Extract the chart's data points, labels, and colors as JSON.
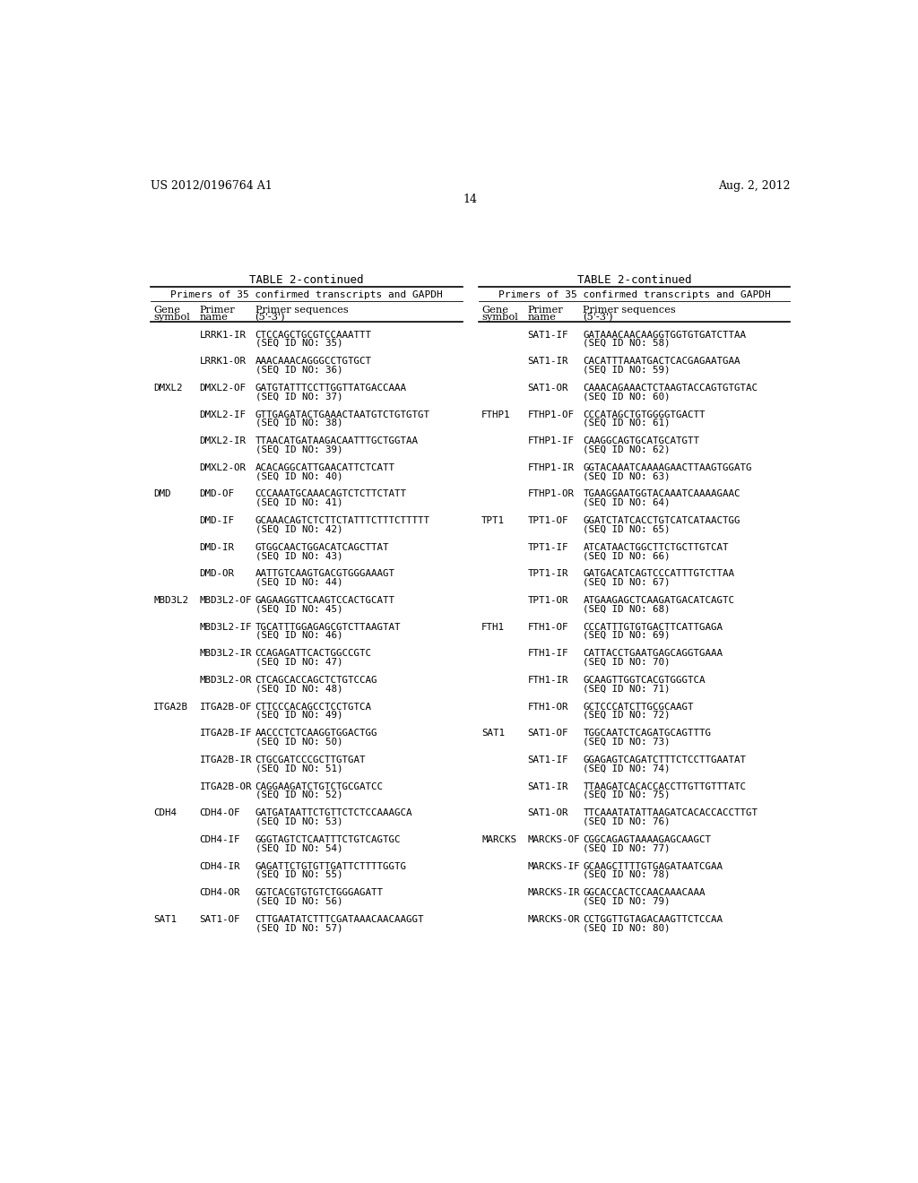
{
  "header_left": "US 2012/0196764 A1",
  "header_right": "Aug. 2, 2012",
  "page_number": "14",
  "table_title": "TABLE 2-continued",
  "table_subtitle": "Primers of 35 confirmed transcripts and GAPDH",
  "left_rows": [
    [
      "",
      "LRRK1-IR",
      "CTCCAGCTGCGTCCAAATTT",
      "(SEQ ID NO: 35)"
    ],
    [
      "",
      "LRRK1-OR",
      "AAACAAACAGGGCCTGTGCT",
      "(SEQ ID NO: 36)"
    ],
    [
      "DMXL2",
      "DMXL2-OF",
      "GATGTATTTCCTTGGTTATGACCAAA",
      "(SEQ ID NO: 37)"
    ],
    [
      "",
      "DMXL2-IF",
      "GTTGAGATACTGAAACTAATGTCTGTGTGT",
      "(SEQ ID NO: 38)"
    ],
    [
      "",
      "DMXL2-IR",
      "TTAACATGATAAGACAATTTGCTGGTAA",
      "(SEQ ID NO: 39)"
    ],
    [
      "",
      "DMXL2-OR",
      "ACACAGGCATTGAACATTCTCATT",
      "(SEQ ID NO: 40)"
    ],
    [
      "DMD",
      "DMD-OF",
      "CCCAAATGCAAACAGTCTCTTCTATT",
      "(SEQ ID NO: 41)"
    ],
    [
      "",
      "DMD-IF",
      "GCAAACAGTCTCTTCTATTTCTTTCTTTTT",
      "(SEQ ID NO: 42)"
    ],
    [
      "",
      "DMD-IR",
      "GTGGCAACTGGACATCAGCTTAT",
      "(SEQ ID NO: 43)"
    ],
    [
      "",
      "DMD-OR",
      "AATTGTCAAGTGACGTGGGAAAGT",
      "(SEQ ID NO: 44)"
    ],
    [
      "MBD3L2",
      "MBD3L2-OF",
      "GAGAAGGTTCAAGTCCACTGCATT",
      "(SEQ ID NO: 45)"
    ],
    [
      "",
      "MBD3L2-IF",
      "TGCATTTGGAGAGCGTCTTAAGTAT",
      "(SEQ ID NO: 46)"
    ],
    [
      "",
      "MBD3L2-IR",
      "CCAGAGATTCACTGGCCGTC",
      "(SEQ ID NO: 47)"
    ],
    [
      "",
      "MBD3L2-OR",
      "CTCAGCACCAGCTCTGTCCAG",
      "(SEQ ID NO: 48)"
    ],
    [
      "ITGA2B",
      "ITGA2B-OF",
      "CTTCCCACAGCCTCCTGTCA",
      "(SEQ ID NO: 49)"
    ],
    [
      "",
      "ITGA2B-IF",
      "AACCCTCTCAAGGTGGACTGG",
      "(SEQ ID NO: 50)"
    ],
    [
      "",
      "ITGA2B-IR",
      "CTGCGATCCCGCTTGTGAT",
      "(SEQ ID NO: 51)"
    ],
    [
      "",
      "ITGA2B-OR",
      "CAGGAAGATCTGTCTGCGATCC",
      "(SEQ ID NO: 52)"
    ],
    [
      "CDH4",
      "CDH4-OF",
      "GATGATAATTCTGTTCTCTCCAAAGCA",
      "(SEQ ID NO: 53)"
    ],
    [
      "",
      "CDH4-IF",
      "GGGTAGTCTCAATTTCTGTCAGTGC",
      "(SEQ ID NO: 54)"
    ],
    [
      "",
      "CDH4-IR",
      "GAGATTCTGTGTTGATTCTTTTGGTG",
      "(SEQ ID NO: 55)"
    ],
    [
      "",
      "CDH4-OR",
      "GGTCACGTGTGTCTGGGAGATT",
      "(SEQ ID NO: 56)"
    ],
    [
      "SAT1",
      "SAT1-OF",
      "CTTGAATATCTTTCGATAAACAACAAGGT",
      "(SEQ ID NO: 57)"
    ]
  ],
  "right_rows": [
    [
      "",
      "SAT1-IF",
      "GATAAACAACAAGGTGGTGTGATCTTAA",
      "(SEQ ID NO: 58)"
    ],
    [
      "",
      "SAT1-IR",
      "CACATTTAAATGACTCACGAGAATGAA",
      "(SEQ ID NO: 59)"
    ],
    [
      "",
      "SAT1-OR",
      "CAAACAGAAACTCTAAGTACCAGTGTGTAC",
      "(SEQ ID NO: 60)"
    ],
    [
      "FTHP1",
      "FTHP1-OF",
      "CCCATAGCTGTGGGGTGACTT",
      "(SEQ ID NO: 61)"
    ],
    [
      "",
      "FTHP1-IF",
      "CAAGGCAGTGCATGCATGTT",
      "(SEQ ID NO: 62)"
    ],
    [
      "",
      "FTHP1-IR",
      "GGTACAAATCAAAAGAACTTAAGTGGATG",
      "(SEQ ID NO: 63)"
    ],
    [
      "",
      "FTHP1-OR",
      "TGAAGGAATGGTACAAATCAAAAGAAC",
      "(SEQ ID NO: 64)"
    ],
    [
      "TPT1",
      "TPT1-OF",
      "GGATCTATCACCTGTCATCATAACTGG",
      "(SEQ ID NO: 65)"
    ],
    [
      "",
      "TPT1-IF",
      "ATCATAACTGGCTTCTGCTTGTCAT",
      "(SEQ ID NO: 66)"
    ],
    [
      "",
      "TPT1-IR",
      "GATGACATCAGTCCCATTTGTCTTAA",
      "(SEQ ID NO: 67)"
    ],
    [
      "",
      "TPT1-OR",
      "ATGAAGAGCTCAAGATGACATCAGTC",
      "(SEQ ID NO: 68)"
    ],
    [
      "FTH1",
      "FTH1-OF",
      "CCCATTTGTGTGACTTCATTGAGA",
      "(SEQ ID NO: 69)"
    ],
    [
      "",
      "FTH1-IF",
      "CATTACCTGAATGAGCAGGTGAAA",
      "(SEQ ID NO: 70)"
    ],
    [
      "",
      "FTH1-IR",
      "GCAAGTTGGTCACGTGGGTCA",
      "(SEQ ID NO: 71)"
    ],
    [
      "",
      "FTH1-OR",
      "GCTCCCATCTTGCGCAAGT",
      "(SEQ ID NO: 72)"
    ],
    [
      "SAT1",
      "SAT1-OF",
      "TGGCAATCTCAGATGCAGTTTG",
      "(SEQ ID NO: 73)"
    ],
    [
      "",
      "SAT1-IF",
      "GGAGAGTCAGATCTTTCTCCTTGAATAT",
      "(SEQ ID NO: 74)"
    ],
    [
      "",
      "SAT1-IR",
      "TTAAGATCACACCACCTTGTTGTTTATC",
      "(SEQ ID NO: 75)"
    ],
    [
      "",
      "SAT1-OR",
      "TTCAAATATATTAAGATCACACCACCTTGT",
      "(SEQ ID NO: 76)"
    ],
    [
      "MARCKS",
      "MARCKS-OF",
      "CGGCAGAGTAAAAGAGCAAGCT",
      "(SEQ ID NO: 77)"
    ],
    [
      "",
      "MARCKS-IF",
      "GCAAGCTTTTGTGAGATAATCGAA",
      "(SEQ ID NO: 78)"
    ],
    [
      "",
      "MARCKS-IR",
      "GGCACCACTCCAACAAACAAA",
      "(SEQ ID NO: 79)"
    ],
    [
      "",
      "MARCKS-OR",
      "CCTGGTTGTAGACAAGTTCTCCAA",
      "(SEQ ID NO: 80)"
    ]
  ],
  "bg_color": "#ffffff",
  "text_color": "#000000"
}
